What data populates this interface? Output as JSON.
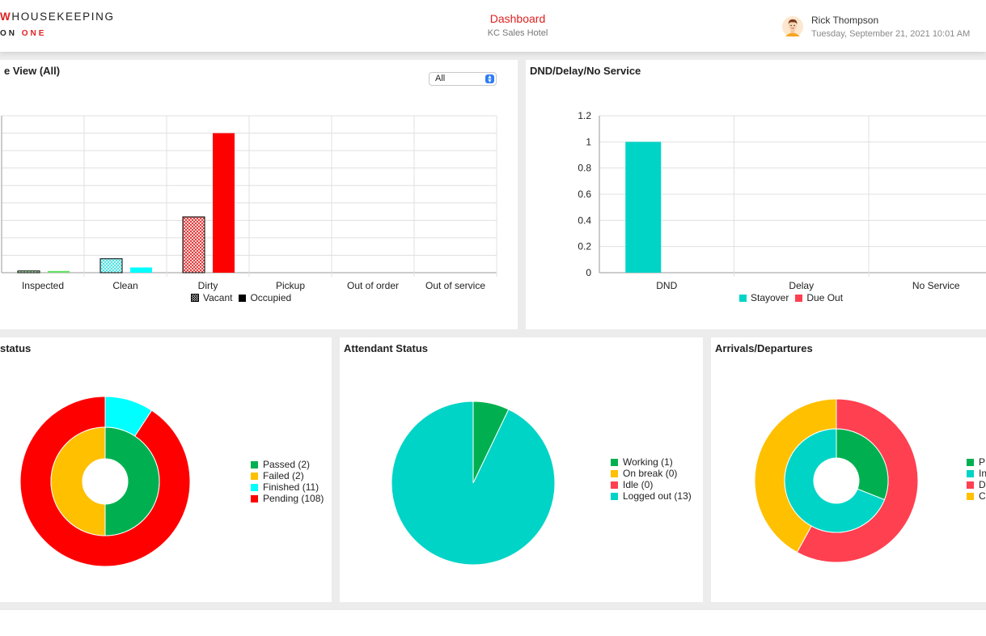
{
  "header": {
    "logo_line1_red": "W",
    "logo_line1_dark": "HOUSEKEEPING",
    "logo_line2_dark": "ON",
    "logo_line2_red": "ONE",
    "title": "Dashboard",
    "subtitle": "KC Sales Hotel",
    "user_name": "Rick Thompson",
    "datetime": "Tuesday, September 21, 2021 10:01 AM"
  },
  "colors": {
    "red": "#ff0000",
    "teal": "#00d4c6",
    "green": "#00b050",
    "yellow": "#ffc000",
    "cyan": "#00ffff",
    "pink": "#ff4050",
    "lime": "#66e066"
  },
  "room_panel": {
    "title": "e View (All)",
    "filter_value": "All",
    "legend": [
      "Vacant",
      "Occupied"
    ]
  },
  "dnd_panel": {
    "title": "DND/Delay/No Service",
    "legend": [
      "Stayover",
      "Due Out"
    ]
  },
  "inspection_panel": {
    "title": "status",
    "legend": [
      "Passed (2)",
      "Failed (2)",
      "Finished (11)",
      "Pending (108)"
    ]
  },
  "attendant_panel": {
    "title": "Attendant Status",
    "legend": [
      "Working (1)",
      "On break (0)",
      "Idle (0)",
      "Logged out (13)"
    ]
  },
  "arrivals_panel": {
    "title": "Arrivals/Departures",
    "legend": [
      "P",
      "In",
      "D",
      "C"
    ]
  },
  "chart_data": [
    {
      "type": "bar",
      "categories": [
        "Inspected",
        "Clean",
        "Dirty",
        "Pickup",
        "Out of order",
        "Out of service"
      ],
      "series": [
        {
          "name": "Vacant",
          "values": [
            1,
            8,
            32,
            0,
            0,
            0
          ]
        },
        {
          "name": "Occupied",
          "values": [
            1,
            3,
            80,
            0,
            0,
            0
          ]
        }
      ],
      "ylim": [
        0,
        90
      ],
      "grid": true,
      "legend": "bottom"
    },
    {
      "type": "bar",
      "categories": [
        "DND",
        "Delay",
        "No Service"
      ],
      "series": [
        {
          "name": "Stayover",
          "values": [
            1,
            0,
            0
          ]
        },
        {
          "name": "Due Out",
          "values": [
            0,
            0,
            0
          ]
        }
      ],
      "yticks": [
        "0",
        "0.2",
        "0.4",
        "0.6",
        "0.8",
        "1",
        "1.2"
      ],
      "ylim": [
        0,
        1.2
      ],
      "grid": true,
      "legend": "bottom"
    },
    {
      "type": "pie",
      "rings": [
        {
          "name": "outer",
          "labels": [
            "Finished",
            "Pending"
          ],
          "values": [
            11,
            108
          ]
        },
        {
          "name": "inner",
          "labels": [
            "Passed",
            "Failed"
          ],
          "values": [
            2,
            2
          ]
        }
      ],
      "legend": "right"
    },
    {
      "type": "pie",
      "labels": [
        "Working",
        "On break",
        "Idle",
        "Logged out"
      ],
      "values": [
        1,
        0,
        0,
        13
      ],
      "legend": "right"
    },
    {
      "type": "pie",
      "rings": [
        {
          "name": "outer",
          "values": [
            58,
            42
          ]
        },
        {
          "name": "inner",
          "values": [
            31,
            69
          ]
        }
      ],
      "legend": "right"
    }
  ]
}
